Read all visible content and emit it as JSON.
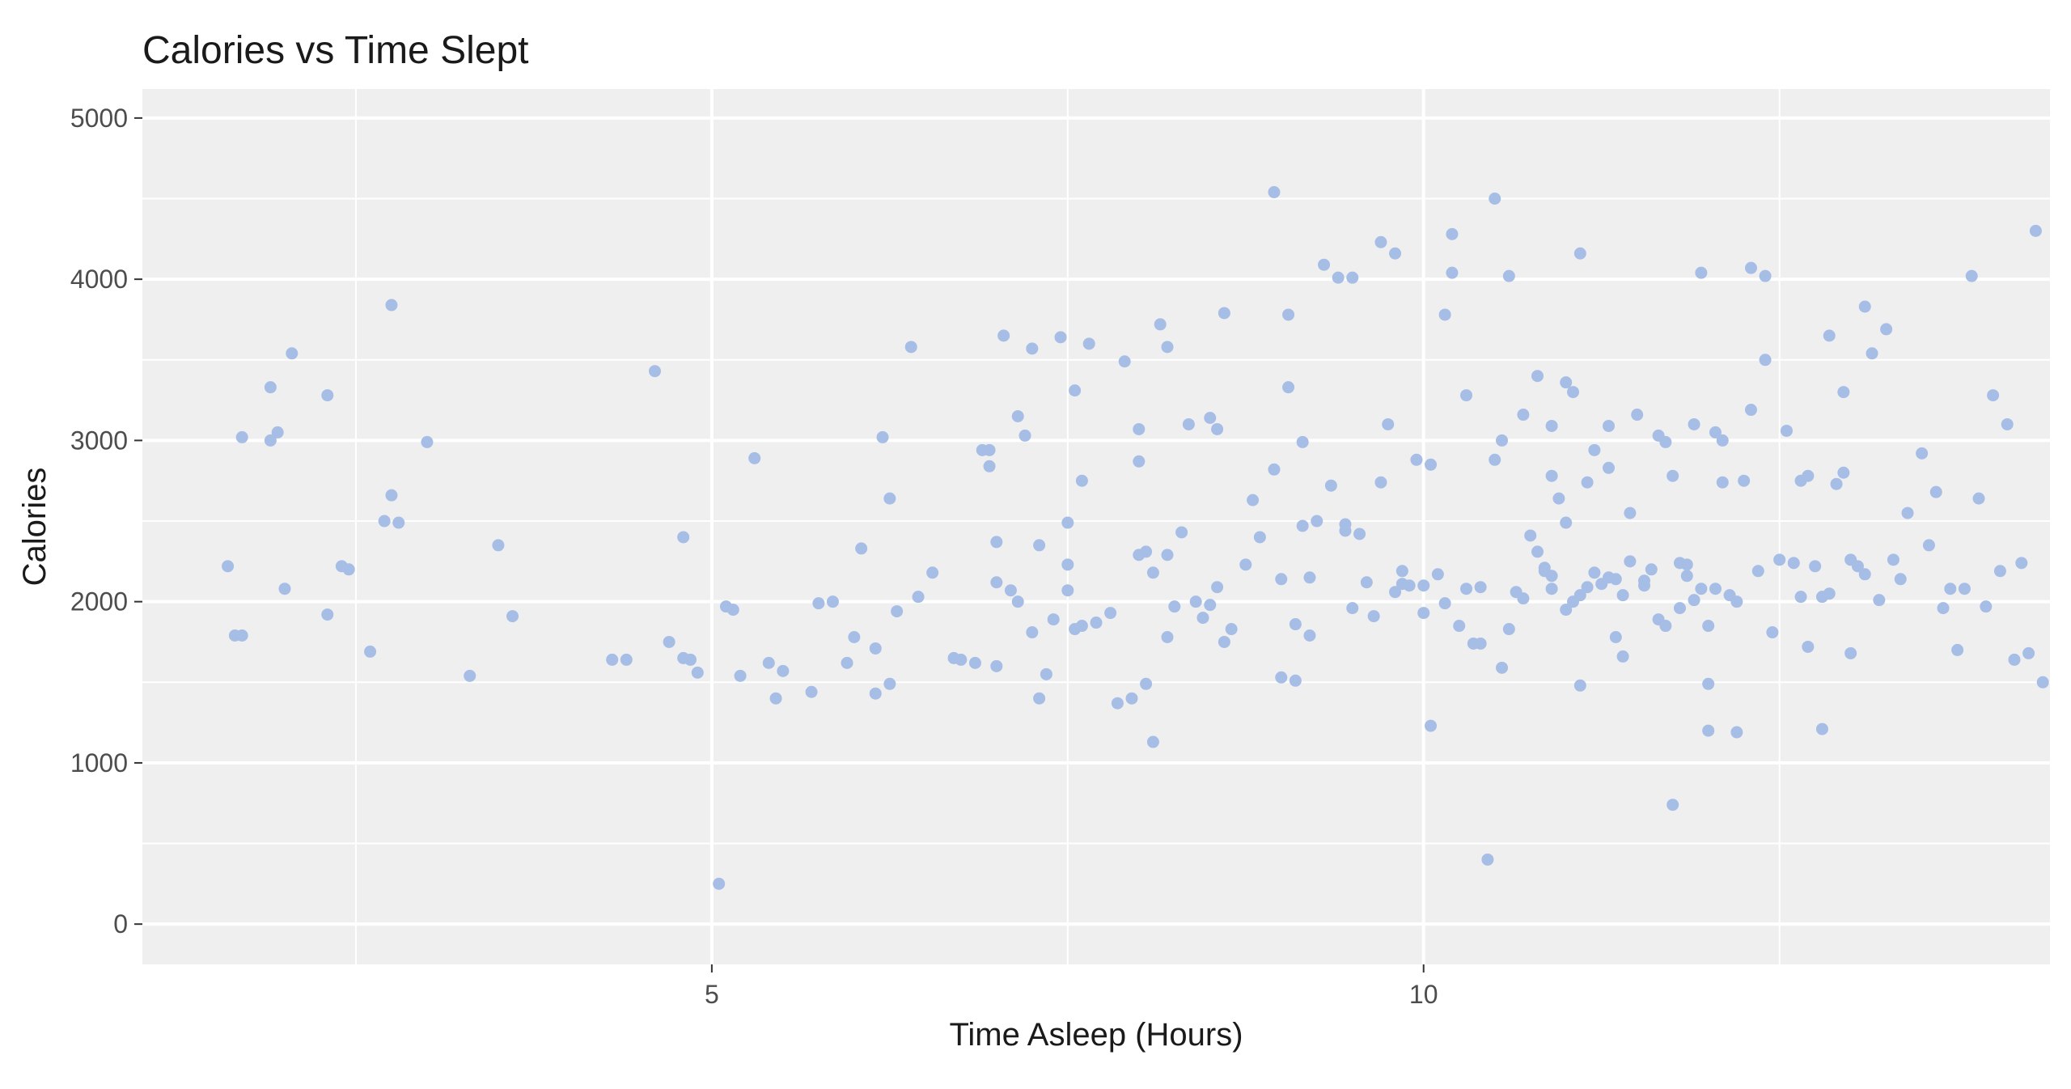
{
  "chart_data": {
    "type": "scatter",
    "title": "Calories vs Time Slept",
    "xlabel": "Time Asleep (Hours)",
    "ylabel": "Calories",
    "xlim": [
      1.0,
      14.4
    ],
    "ylim": [
      -250,
      5180
    ],
    "x_ticks": [
      5,
      10
    ],
    "x_tick_labels": [
      "5",
      "10"
    ],
    "x_minor_ticks": [
      2.5,
      7.5,
      12.5
    ],
    "y_ticks": [
      0,
      1000,
      2000,
      3000,
      4000,
      5000
    ],
    "y_tick_labels": [
      "0",
      "1000",
      "2000",
      "3000",
      "4000",
      "5000"
    ],
    "y_minor_ticks": [
      500,
      1500,
      2500,
      3500,
      4500
    ],
    "grid": true,
    "legend": "none",
    "colors": {
      "points": "#a6bde6",
      "panel": "#efefef",
      "grid": "#ffffff"
    },
    "points": [
      [
        1.6,
        2220
      ],
      [
        1.65,
        1790
      ],
      [
        1.7,
        1790
      ],
      [
        1.7,
        3020
      ],
      [
        1.9,
        3330
      ],
      [
        1.9,
        3000
      ],
      [
        1.95,
        3050
      ],
      [
        2.0,
        2080
      ],
      [
        2.05,
        3540
      ],
      [
        2.3,
        1920
      ],
      [
        2.3,
        3280
      ],
      [
        2.4,
        2220
      ],
      [
        2.45,
        2200
      ],
      [
        2.6,
        1690
      ],
      [
        2.7,
        2500
      ],
      [
        2.75,
        2660
      ],
      [
        2.75,
        3840
      ],
      [
        2.8,
        2490
      ],
      [
        3.0,
        2990
      ],
      [
        3.3,
        1540
      ],
      [
        3.5,
        2350
      ],
      [
        3.6,
        1910
      ],
      [
        4.3,
        1640
      ],
      [
        4.4,
        1640
      ],
      [
        4.6,
        3430
      ],
      [
        4.7,
        1750
      ],
      [
        4.8,
        2400
      ],
      [
        4.8,
        1650
      ],
      [
        4.85,
        1640
      ],
      [
        4.9,
        1560
      ],
      [
        5.1,
        1970
      ],
      [
        5.15,
        1950
      ],
      [
        5.2,
        1540
      ],
      [
        5.3,
        2890
      ],
      [
        5.4,
        1620
      ],
      [
        5.45,
        1400
      ],
      [
        5.5,
        1570
      ],
      [
        5.7,
        1440
      ],
      [
        5.75,
        1990
      ],
      [
        5.85,
        2000
      ],
      [
        5.95,
        1620
      ],
      [
        6.0,
        1780
      ],
      [
        6.05,
        2330
      ],
      [
        6.15,
        1710
      ],
      [
        6.15,
        1430
      ],
      [
        6.2,
        3020
      ],
      [
        6.25,
        1490
      ],
      [
        6.25,
        2640
      ],
      [
        6.3,
        1940
      ],
      [
        6.4,
        3580
      ],
      [
        6.45,
        2030
      ],
      [
        6.55,
        2180
      ],
      [
        5.05,
        250
      ],
      [
        6.7,
        1650
      ],
      [
        6.75,
        1640
      ],
      [
        6.85,
        1620
      ],
      [
        6.9,
        2940
      ],
      [
        6.95,
        2940
      ],
      [
        6.95,
        2840
      ],
      [
        7.0,
        2370
      ],
      [
        7.0,
        2120
      ],
      [
        7.0,
        1600
      ],
      [
        7.05,
        3650
      ],
      [
        7.1,
        2070
      ],
      [
        7.15,
        3150
      ],
      [
        7.15,
        2000
      ],
      [
        7.2,
        3030
      ],
      [
        7.25,
        1810
      ],
      [
        7.25,
        3570
      ],
      [
        7.3,
        1400
      ],
      [
        7.3,
        2350
      ],
      [
        7.35,
        1550
      ],
      [
        7.4,
        1890
      ],
      [
        7.45,
        3640
      ],
      [
        7.5,
        2070
      ],
      [
        7.5,
        2230
      ],
      [
        7.5,
        2490
      ],
      [
        7.55,
        1830
      ],
      [
        7.55,
        3310
      ],
      [
        7.6,
        2750
      ],
      [
        7.6,
        1850
      ],
      [
        7.65,
        3600
      ],
      [
        7.7,
        1870
      ],
      [
        7.8,
        1930
      ],
      [
        7.85,
        1370
      ],
      [
        7.9,
        3490
      ],
      [
        7.95,
        1400
      ],
      [
        8.0,
        2290
      ],
      [
        8.0,
        2870
      ],
      [
        8.0,
        3070
      ],
      [
        8.05,
        1490
      ],
      [
        8.05,
        2310
      ],
      [
        8.1,
        2180
      ],
      [
        8.1,
        1130
      ],
      [
        8.15,
        3720
      ],
      [
        8.2,
        2290
      ],
      [
        8.2,
        3580
      ],
      [
        8.2,
        1780
      ],
      [
        8.25,
        1970
      ],
      [
        8.3,
        2430
      ],
      [
        8.35,
        3100
      ],
      [
        8.4,
        2000
      ],
      [
        8.45,
        1900
      ],
      [
        8.5,
        3140
      ],
      [
        8.5,
        1980
      ],
      [
        8.55,
        2090
      ],
      [
        8.55,
        3070
      ],
      [
        8.6,
        3790
      ],
      [
        8.6,
        1750
      ],
      [
        8.65,
        1830
      ],
      [
        8.75,
        2230
      ],
      [
        8.8,
        2630
      ],
      [
        8.85,
        2400
      ],
      [
        8.95,
        4540
      ],
      [
        8.95,
        2820
      ],
      [
        9.0,
        2140
      ],
      [
        9.0,
        1530
      ],
      [
        9.05,
        3780
      ],
      [
        9.05,
        3330
      ],
      [
        9.1,
        1510
      ],
      [
        9.1,
        1860
      ],
      [
        9.15,
        2990
      ],
      [
        9.15,
        2470
      ],
      [
        9.2,
        2150
      ],
      [
        9.2,
        1790
      ],
      [
        9.25,
        2500
      ],
      [
        9.3,
        4090
      ],
      [
        9.35,
        2720
      ],
      [
        9.4,
        4010
      ],
      [
        9.45,
        2440
      ],
      [
        9.45,
        2480
      ],
      [
        9.5,
        1960
      ],
      [
        9.5,
        4010
      ],
      [
        9.55,
        2420
      ],
      [
        9.6,
        2120
      ],
      [
        9.65,
        1910
      ],
      [
        9.7,
        2740
      ],
      [
        9.7,
        4230
      ],
      [
        9.75,
        3100
      ],
      [
        9.8,
        4160
      ],
      [
        9.8,
        2060
      ],
      [
        9.85,
        2110
      ],
      [
        9.85,
        2190
      ],
      [
        9.9,
        2100
      ],
      [
        9.95,
        2880
      ],
      [
        10.0,
        2100
      ],
      [
        10.0,
        1930
      ],
      [
        10.05,
        1230
      ],
      [
        10.05,
        2850
      ],
      [
        10.1,
        2170
      ],
      [
        10.15,
        3780
      ],
      [
        10.15,
        1990
      ],
      [
        10.2,
        4280
      ],
      [
        10.25,
        1850
      ],
      [
        10.3,
        3280
      ],
      [
        10.3,
        2080
      ],
      [
        10.35,
        1740
      ],
      [
        10.4,
        2090
      ],
      [
        10.4,
        1740
      ],
      [
        10.45,
        400
      ],
      [
        10.5,
        2880
      ],
      [
        10.5,
        4500
      ],
      [
        10.55,
        1590
      ],
      [
        10.55,
        3000
      ],
      [
        10.6,
        4020
      ],
      [
        10.6,
        1830
      ],
      [
        10.65,
        2060
      ],
      [
        10.7,
        2020
      ],
      [
        10.7,
        3160
      ],
      [
        10.75,
        2410
      ],
      [
        10.8,
        2310
      ],
      [
        10.8,
        3400
      ],
      [
        10.85,
        2210
      ],
      [
        10.85,
        2190
      ],
      [
        10.9,
        2160
      ],
      [
        10.9,
        2080
      ],
      [
        10.9,
        3090
      ],
      [
        10.9,
        2780
      ],
      [
        10.95,
        2640
      ],
      [
        11.0,
        1950
      ],
      [
        11.0,
        3360
      ],
      [
        11.0,
        2490
      ],
      [
        11.05,
        3300
      ],
      [
        11.05,
        2000
      ],
      [
        11.1,
        4160
      ],
      [
        11.1,
        2040
      ],
      [
        11.1,
        1480
      ],
      [
        11.15,
        2090
      ],
      [
        11.15,
        2740
      ],
      [
        11.2,
        2940
      ],
      [
        11.2,
        2180
      ],
      [
        11.25,
        2110
      ],
      [
        11.3,
        3090
      ],
      [
        11.3,
        2830
      ],
      [
        11.3,
        2150
      ],
      [
        11.35,
        2140
      ],
      [
        11.35,
        1780
      ],
      [
        11.4,
        2040
      ],
      [
        11.4,
        1660
      ],
      [
        11.45,
        2550
      ],
      [
        11.45,
        2250
      ],
      [
        11.5,
        3160
      ],
      [
        11.55,
        2100
      ],
      [
        11.55,
        2130
      ],
      [
        11.6,
        2200
      ],
      [
        11.65,
        1890
      ],
      [
        11.65,
        3030
      ],
      [
        11.7,
        1850
      ],
      [
        11.7,
        2990
      ],
      [
        11.75,
        2780
      ],
      [
        11.75,
        740
      ],
      [
        11.8,
        2240
      ],
      [
        11.8,
        1960
      ],
      [
        11.85,
        2230
      ],
      [
        11.85,
        2160
      ],
      [
        11.9,
        2010
      ],
      [
        11.9,
        3100
      ],
      [
        11.95,
        2080
      ],
      [
        11.95,
        4040
      ],
      [
        12.0,
        1200
      ],
      [
        12.0,
        1490
      ],
      [
        12.0,
        1850
      ],
      [
        12.05,
        2080
      ],
      [
        12.05,
        3050
      ],
      [
        12.1,
        2740
      ],
      [
        12.1,
        3000
      ],
      [
        12.15,
        2040
      ],
      [
        12.2,
        2000
      ],
      [
        12.2,
        1190
      ],
      [
        12.25,
        2750
      ],
      [
        12.3,
        4070
      ],
      [
        12.3,
        3190
      ],
      [
        12.35,
        2190
      ],
      [
        12.4,
        3500
      ],
      [
        12.45,
        1810
      ],
      [
        12.5,
        2260
      ],
      [
        12.55,
        3060
      ],
      [
        12.6,
        2240
      ],
      [
        12.65,
        2750
      ],
      [
        12.7,
        1720
      ],
      [
        12.75,
        2220
      ],
      [
        12.8,
        2030
      ],
      [
        12.85,
        2050
      ],
      [
        12.9,
        2730
      ],
      [
        12.95,
        2800
      ],
      [
        13.0,
        2260
      ],
      [
        13.0,
        1680
      ],
      [
        13.05,
        2220
      ],
      [
        13.1,
        2170
      ],
      [
        13.15,
        3540
      ],
      [
        13.2,
        2010
      ],
      [
        13.25,
        3690
      ],
      [
        13.3,
        2260
      ],
      [
        13.35,
        2140
      ],
      [
        13.4,
        2550
      ],
      [
        13.5,
        2920
      ],
      [
        13.55,
        2350
      ],
      [
        13.6,
        2680
      ],
      [
        13.65,
        1960
      ],
      [
        13.7,
        2080
      ],
      [
        13.75,
        1700
      ],
      [
        13.8,
        2080
      ],
      [
        13.85,
        4020
      ],
      [
        13.9,
        2640
      ],
      [
        13.95,
        1970
      ],
      [
        14.0,
        3280
      ],
      [
        14.05,
        2190
      ],
      [
        14.1,
        3100
      ],
      [
        14.15,
        1640
      ],
      [
        14.2,
        2240
      ],
      [
        14.25,
        1680
      ],
      [
        14.3,
        4300
      ],
      [
        14.35,
        1500
      ],
      [
        12.8,
        1210
      ],
      [
        12.65,
        2030
      ],
      [
        12.7,
        2780
      ],
      [
        12.85,
        3650
      ],
      [
        12.95,
        3300
      ],
      [
        10.2,
        4040
      ],
      [
        12.4,
        4020
      ],
      [
        13.1,
        3830
      ]
    ]
  }
}
